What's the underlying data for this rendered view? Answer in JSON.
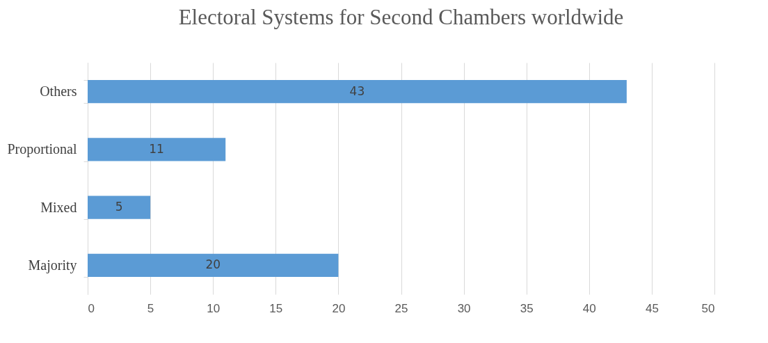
{
  "chart_data": {
    "type": "bar",
    "orientation": "horizontal",
    "title": "Electoral Systems for Second Chambers  worldwide",
    "categories": [
      "Others",
      "Proportional",
      "Mixed",
      "Majority"
    ],
    "values": [
      43,
      11,
      5,
      20
    ],
    "color": "#5b9bd5",
    "xlim": [
      0,
      50
    ],
    "xticks": [
      0,
      5,
      10,
      15,
      20,
      25,
      30,
      35,
      40,
      45,
      50
    ],
    "grid": "x",
    "data_labels": true
  }
}
